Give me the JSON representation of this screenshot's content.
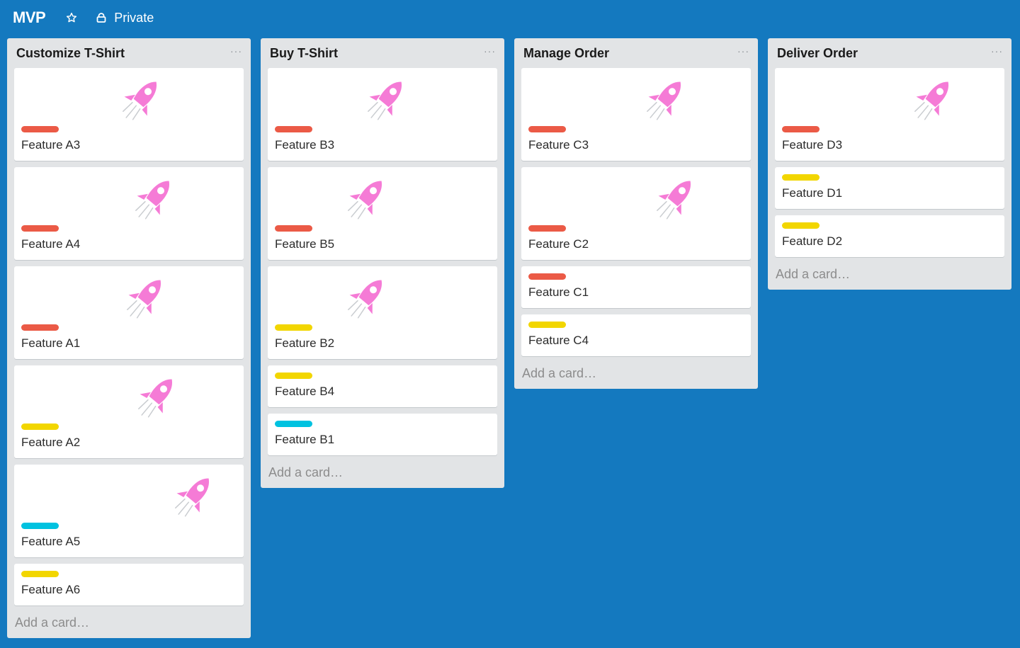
{
  "board": {
    "title": "MVP",
    "visibility": "Private",
    "background_color": "#1479bf"
  },
  "label_colors": {
    "red": "#eb5a46",
    "yellow": "#f2d600",
    "cyan": "#00c2e0"
  },
  "sticker": "rocket-sticker",
  "add_card_label": "Add a card…",
  "lists": [
    {
      "title": "Customize T-Shirt",
      "cards": [
        {
          "title": "Feature A3",
          "label": "red",
          "sticker": true
        },
        {
          "title": "Feature A4",
          "label": "red",
          "sticker": true
        },
        {
          "title": "Feature A1",
          "label": "red",
          "sticker": true
        },
        {
          "title": "Feature A2",
          "label": "yellow",
          "sticker": true
        },
        {
          "title": "Feature A5",
          "label": "cyan",
          "sticker": true
        },
        {
          "title": "Feature A6",
          "label": "yellow",
          "sticker": false
        }
      ]
    },
    {
      "title": "Buy T-Shirt",
      "cards": [
        {
          "title": "Feature B3",
          "label": "red",
          "sticker": true
        },
        {
          "title": "Feature B5",
          "label": "red",
          "sticker": true
        },
        {
          "title": "Feature B2",
          "label": "yellow",
          "sticker": true
        },
        {
          "title": "Feature B4",
          "label": "yellow",
          "sticker": false
        },
        {
          "title": "Feature B1",
          "label": "cyan",
          "sticker": false
        }
      ]
    },
    {
      "title": "Manage Order",
      "cards": [
        {
          "title": "Feature C3",
          "label": "red",
          "sticker": true
        },
        {
          "title": "Feature C2",
          "label": "red",
          "sticker": true
        },
        {
          "title": "Feature C1",
          "label": "red",
          "sticker": false
        },
        {
          "title": "Feature C4",
          "label": "yellow",
          "sticker": false
        }
      ]
    },
    {
      "title": "Deliver Order",
      "cards": [
        {
          "title": "Feature D3",
          "label": "red",
          "sticker": true
        },
        {
          "title": "Feature D1",
          "label": "yellow",
          "sticker": false
        },
        {
          "title": "Feature D2",
          "label": "yellow",
          "sticker": false
        }
      ]
    }
  ]
}
